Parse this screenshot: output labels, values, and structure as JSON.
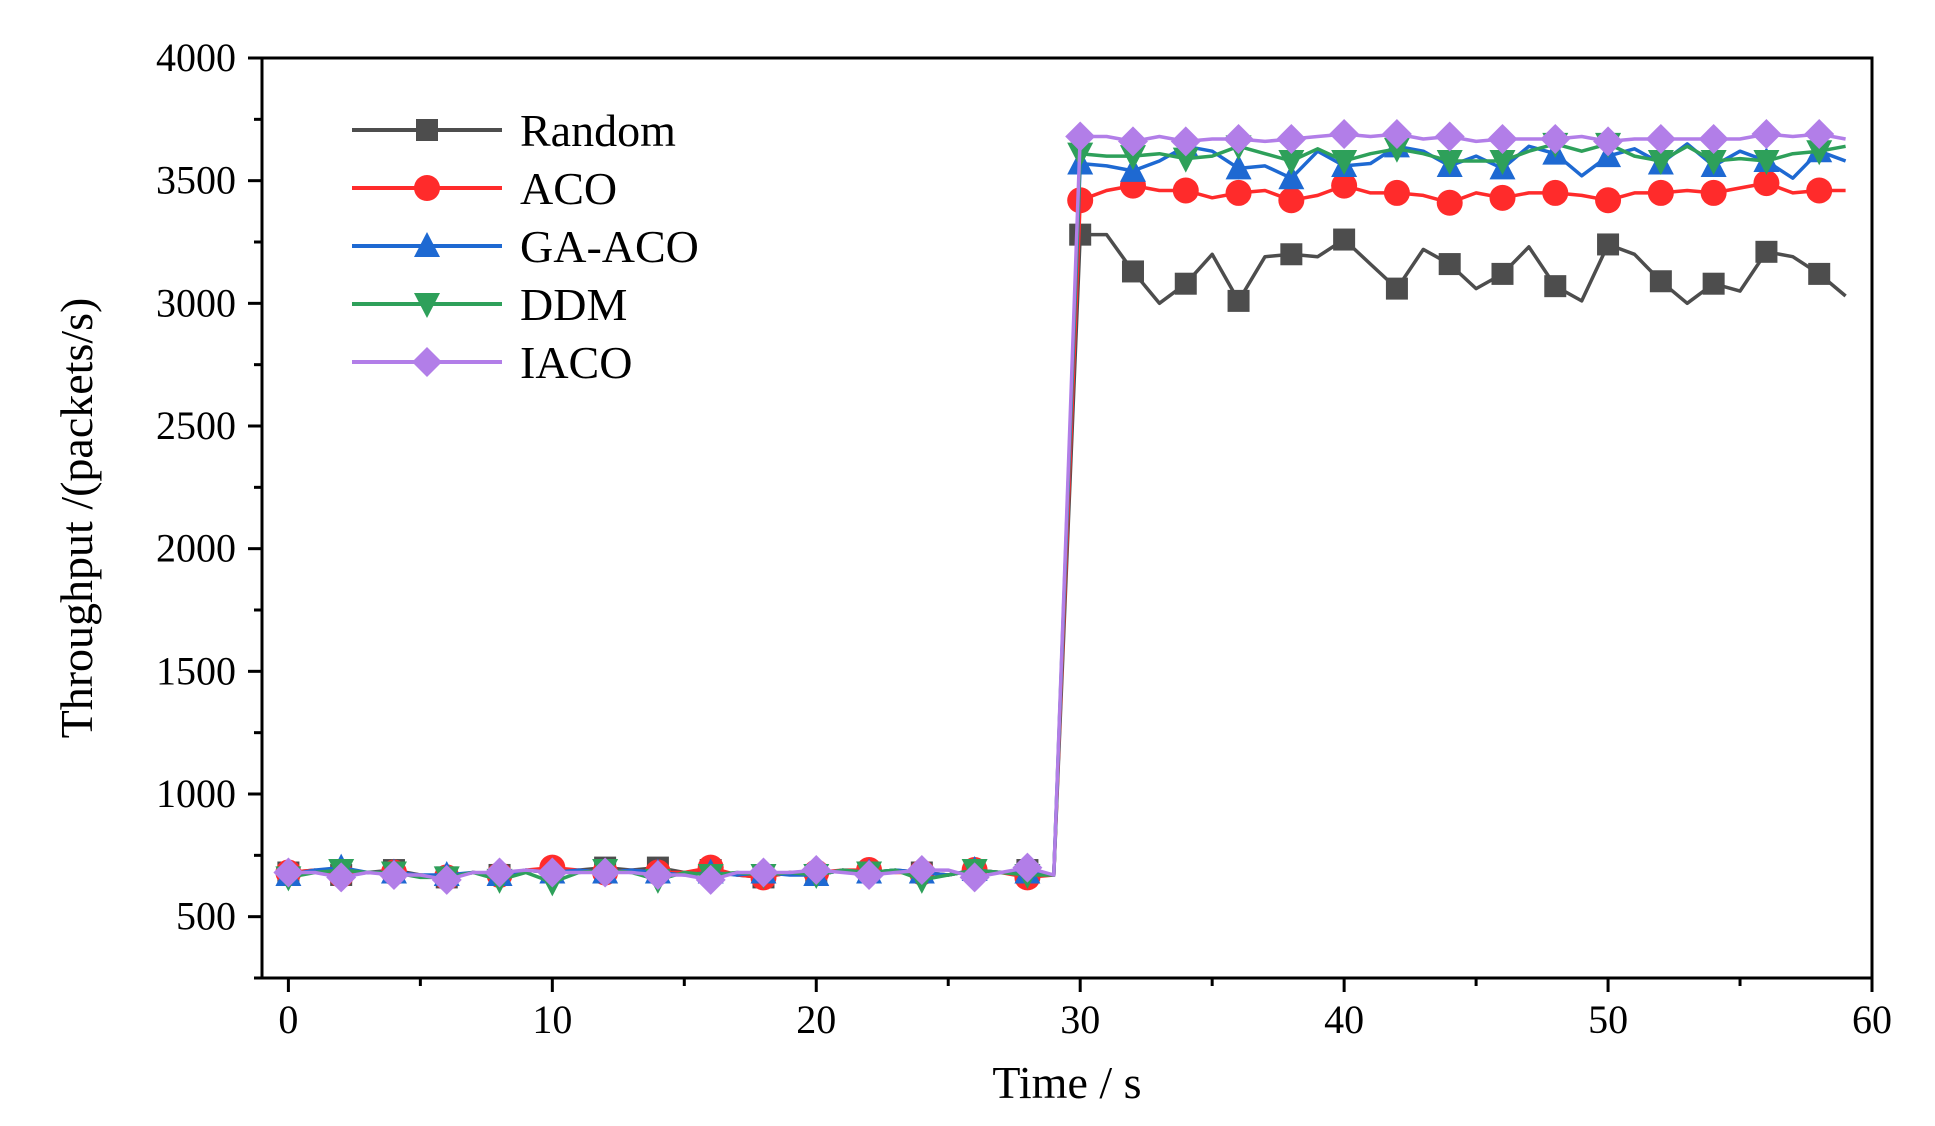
{
  "chart_data": {
    "type": "line",
    "title": "",
    "xlabel": "Time / s",
    "ylabel": "Throughput /(packets/s)",
    "xlim": [
      -1,
      60
    ],
    "ylim": [
      250,
      4000
    ],
    "xticks": [
      0,
      10,
      20,
      30,
      40,
      50,
      60
    ],
    "yticks": [
      500,
      1000,
      1500,
      2000,
      2500,
      3000,
      3500,
      4000
    ],
    "legend_position": "top-left",
    "grid": false,
    "x": [
      0,
      1,
      2,
      3,
      4,
      5,
      6,
      7,
      8,
      9,
      10,
      11,
      12,
      13,
      14,
      15,
      16,
      17,
      18,
      19,
      20,
      21,
      22,
      23,
      24,
      25,
      26,
      27,
      28,
      29,
      30,
      31,
      32,
      33,
      34,
      35,
      36,
      37,
      38,
      39,
      40,
      41,
      42,
      43,
      44,
      45,
      46,
      47,
      48,
      49,
      50,
      51,
      52,
      53,
      54,
      55,
      56,
      57,
      58,
      59
    ],
    "series": [
      {
        "name": "Random",
        "color": "#4d4d4d",
        "marker": "square",
        "values": [
          680,
          690,
          670,
          680,
          690,
          670,
          660,
          680,
          670,
          690,
          680,
          690,
          700,
          690,
          700,
          680,
          690,
          670,
          660,
          680,
          670,
          690,
          680,
          690,
          680,
          670,
          690,
          680,
          690,
          670,
          3280,
          3280,
          3130,
          3000,
          3080,
          3200,
          3010,
          3190,
          3200,
          3190,
          3260,
          3160,
          3060,
          3220,
          3160,
          3060,
          3120,
          3230,
          3070,
          3010,
          3240,
          3200,
          3090,
          3000,
          3080,
          3050,
          3210,
          3190,
          3120,
          3030
        ]
      },
      {
        "name": "ACO",
        "color": "#ff2b2b",
        "marker": "circle",
        "values": [
          680,
          690,
          670,
          680,
          680,
          670,
          660,
          680,
          670,
          690,
          700,
          690,
          680,
          690,
          680,
          680,
          700,
          670,
          660,
          680,
          680,
          690,
          690,
          680,
          680,
          670,
          690,
          680,
          660,
          670,
          3420,
          3460,
          3480,
          3460,
          3460,
          3430,
          3450,
          3460,
          3420,
          3440,
          3480,
          3450,
          3450,
          3440,
          3410,
          3450,
          3430,
          3450,
          3450,
          3440,
          3420,
          3450,
          3450,
          3460,
          3450,
          3470,
          3490,
          3450,
          3460,
          3460
        ]
      },
      {
        "name": "GA-ACO",
        "color": "#1e69d2",
        "marker": "triangle-up",
        "values": [
          670,
          690,
          700,
          680,
          680,
          670,
          670,
          680,
          670,
          690,
          680,
          690,
          680,
          690,
          680,
          670,
          680,
          670,
          680,
          670,
          670,
          690,
          680,
          690,
          680,
          670,
          690,
          680,
          680,
          670,
          3570,
          3560,
          3540,
          3580,
          3640,
          3620,
          3550,
          3560,
          3510,
          3620,
          3560,
          3570,
          3640,
          3620,
          3560,
          3600,
          3550,
          3640,
          3610,
          3520,
          3600,
          3630,
          3570,
          3650,
          3560,
          3620,
          3580,
          3510,
          3620,
          3580
        ]
      },
      {
        "name": "DDM",
        "color": "#2ea05a",
        "marker": "triangle-down",
        "values": [
          660,
          680,
          690,
          680,
          680,
          660,
          660,
          680,
          650,
          680,
          640,
          680,
          690,
          680,
          650,
          680,
          670,
          680,
          670,
          680,
          670,
          690,
          680,
          690,
          650,
          670,
          690,
          680,
          670,
          670,
          3610,
          3600,
          3600,
          3610,
          3590,
          3600,
          3640,
          3610,
          3580,
          3630,
          3580,
          3610,
          3630,
          3610,
          3580,
          3580,
          3580,
          3620,
          3650,
          3620,
          3650,
          3600,
          3580,
          3640,
          3580,
          3590,
          3580,
          3610,
          3620,
          3640
        ]
      },
      {
        "name": "IACO",
        "color": "#b27ee8",
        "marker": "diamond",
        "values": [
          680,
          680,
          660,
          680,
          670,
          670,
          650,
          680,
          680,
          690,
          680,
          680,
          680,
          680,
          670,
          670,
          650,
          680,
          680,
          680,
          690,
          680,
          670,
          680,
          690,
          690,
          660,
          680,
          700,
          670,
          3680,
          3680,
          3660,
          3680,
          3660,
          3670,
          3670,
          3660,
          3670,
          3680,
          3690,
          3680,
          3690,
          3670,
          3680,
          3660,
          3670,
          3670,
          3670,
          3680,
          3660,
          3670,
          3670,
          3670,
          3670,
          3670,
          3690,
          3680,
          3690,
          3670
        ]
      }
    ]
  }
}
